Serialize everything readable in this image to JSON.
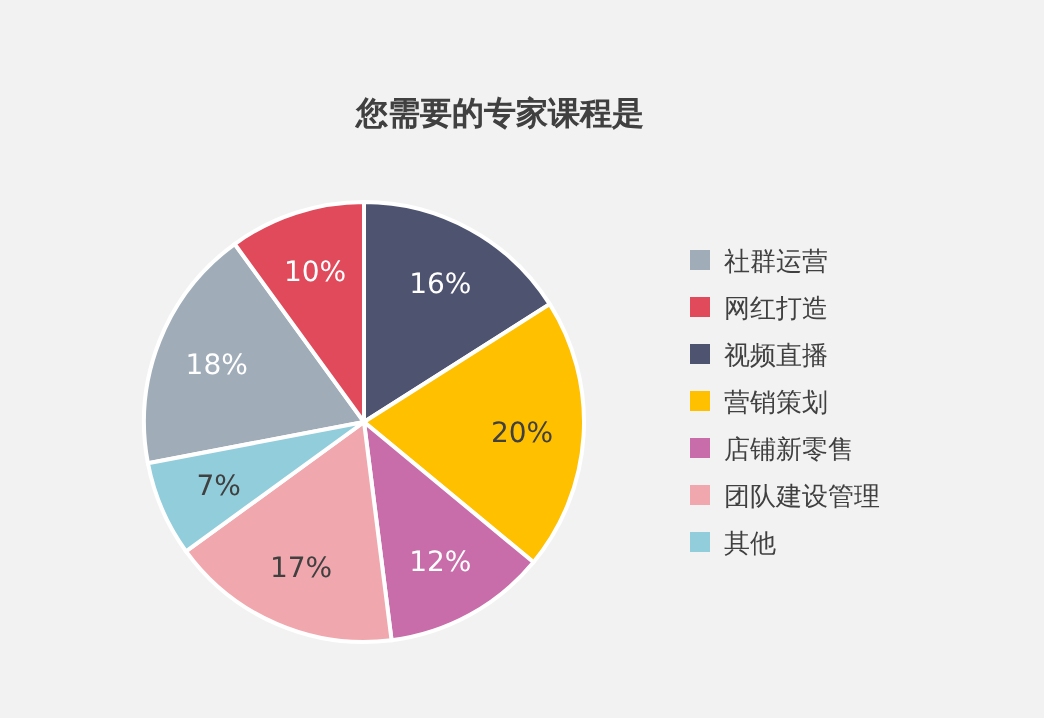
{
  "chart_data": {
    "type": "pie",
    "title": "您需要的专家课程是",
    "categories": [
      "社群运营",
      "网红打造",
      "视频直播",
      "营销策划",
      "店铺新零售",
      "团队建设管理",
      "其他"
    ],
    "values": [
      18,
      10,
      16,
      20,
      12,
      17,
      7
    ],
    "colors": [
      "#a0adb9",
      "#e04a5a",
      "#4e5370",
      "#ffc000",
      "#c86caa",
      "#f0a8ae",
      "#92cddc"
    ],
    "value_labels": [
      "18%",
      "10%",
      "16%",
      "20%",
      "12%",
      "17%",
      "7%"
    ],
    "legend": "right"
  }
}
